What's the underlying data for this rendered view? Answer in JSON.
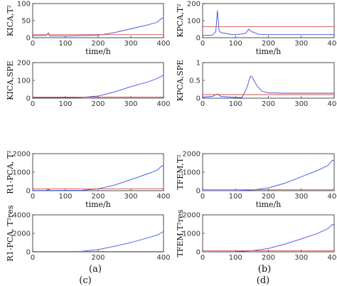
{
  "chart_data": [
    {
      "type": "line",
      "group": "a",
      "ylabel": "KICA,T²",
      "xlabel": "time/h",
      "xlim": [
        0,
        400
      ],
      "ylim": [
        0,
        100
      ],
      "xticks": [
        "0",
        "100",
        "200",
        "300",
        "400"
      ],
      "yticks": [
        "0",
        "50",
        "100"
      ],
      "series": [
        {
          "values": [
            [
              0,
              6
            ],
            [
              40,
              6
            ],
            [
              48,
              14
            ],
            [
              52,
              5
            ],
            [
              100,
              5
            ],
            [
              150,
              6
            ],
            [
              200,
              7
            ],
            [
              250,
              15
            ],
            [
              300,
              26
            ],
            [
              350,
              37
            ],
            [
              380,
              45
            ],
            [
              395,
              57
            ],
            [
              400,
              57
            ]
          ],
          "color": "#3b4fe0"
        },
        {
          "values": [
            [
              0,
              9
            ],
            [
              400,
              9
            ]
          ],
          "color": "#d9534f"
        }
      ]
    },
    {
      "type": "line",
      "group": "a",
      "ylabel": "KICA,SPE",
      "xlabel": "",
      "xlim": [
        0,
        400
      ],
      "ylim": [
        0,
        200
      ],
      "xticks": [
        "0",
        "100",
        "200",
        "300",
        "400"
      ],
      "yticks": [
        "0",
        "100",
        "200"
      ],
      "series": [
        {
          "values": [
            [
              0,
              2
            ],
            [
              100,
              3
            ],
            [
              150,
              5
            ],
            [
              200,
              12
            ],
            [
              250,
              35
            ],
            [
              300,
              65
            ],
            [
              350,
              90
            ],
            [
              380,
              110
            ],
            [
              400,
              130
            ]
          ],
          "color": "#3b4fe0"
        },
        {
          "values": [
            [
              0,
              6
            ],
            [
              400,
              6
            ]
          ],
          "color": "#d9534f"
        }
      ]
    },
    {
      "type": "line",
      "group": "b",
      "ylabel": "KPCA,T²",
      "xlabel": "time/h",
      "xlim": [
        0,
        400
      ],
      "ylim": [
        0,
        200
      ],
      "xticks": [
        "0",
        "100",
        "200",
        "300",
        "400"
      ],
      "yticks": [
        "0",
        "100",
        "200"
      ],
      "series": [
        {
          "values": [
            [
              0,
              15
            ],
            [
              30,
              15
            ],
            [
              40,
              35
            ],
            [
              45,
              160
            ],
            [
              50,
              45
            ],
            [
              55,
              30
            ],
            [
              70,
              25
            ],
            [
              90,
              18
            ],
            [
              110,
              20
            ],
            [
              130,
              25
            ],
            [
              140,
              50
            ],
            [
              150,
              35
            ],
            [
              170,
              20
            ],
            [
              200,
              18
            ],
            [
              300,
              18
            ],
            [
              400,
              18
            ]
          ],
          "color": "#3b4fe0"
        },
        {
          "values": [
            [
              0,
              65
            ],
            [
              400,
              65
            ]
          ],
          "color": "#d9534f"
        }
      ]
    },
    {
      "type": "line",
      "group": "b",
      "ylabel": "KPCA,SPE",
      "xlabel": "",
      "xlim": [
        0,
        400
      ],
      "ylim": [
        0,
        1
      ],
      "xticks": [
        "0",
        "100",
        "200",
        "300",
        "400"
      ],
      "yticks": [
        "0",
        "0.5",
        "1"
      ],
      "series": [
        {
          "values": [
            [
              0,
              0.03
            ],
            [
              30,
              0.05
            ],
            [
              45,
              0.12
            ],
            [
              55,
              0.05
            ],
            [
              100,
              0.02
            ],
            [
              120,
              0.02
            ],
            [
              135,
              0.3
            ],
            [
              145,
              0.62
            ],
            [
              150,
              0.6
            ],
            [
              165,
              0.35
            ],
            [
              180,
              0.2
            ],
            [
              200,
              0.15
            ],
            [
              240,
              0.14
            ],
            [
              400,
              0.14
            ]
          ],
          "color": "#3b4fe0"
        },
        {
          "values": [
            [
              0,
              0.1
            ],
            [
              400,
              0.1
            ]
          ],
          "color": "#d9534f"
        }
      ]
    },
    {
      "type": "line",
      "group": "c",
      "ylabel": "R1-PCA, T²",
      "xlabel": "time/h",
      "xlim": [
        0,
        400
      ],
      "ylim": [
        0,
        2000
      ],
      "xticks": [
        "0",
        "100",
        "200",
        "300",
        "400"
      ],
      "yticks": [
        "0",
        "1000",
        "2000"
      ],
      "series": [
        {
          "values": [
            [
              0,
              10
            ],
            [
              40,
              10
            ],
            [
              48,
              60
            ],
            [
              55,
              10
            ],
            [
              150,
              20
            ],
            [
              200,
              100
            ],
            [
              250,
              300
            ],
            [
              300,
              600
            ],
            [
              350,
              900
            ],
            [
              380,
              1100
            ],
            [
              395,
              1350
            ],
            [
              400,
              1300
            ]
          ],
          "color": "#3b4fe0"
        },
        {
          "values": [
            [
              0,
              100
            ],
            [
              400,
              100
            ]
          ],
          "color": "#d9534f"
        }
      ]
    },
    {
      "type": "line",
      "group": "c",
      "ylabel": "R1-PCA, T²res",
      "xlabel": "",
      "xlim": [
        0,
        400
      ],
      "ylim": [
        0,
        4000
      ],
      "xticks": [
        "0",
        "200",
        "400"
      ],
      "yticks": [
        "0",
        "2000",
        "4000"
      ],
      "series": [
        {
          "values": [
            [
              0,
              20
            ],
            [
              100,
              30
            ],
            [
              150,
              60
            ],
            [
              200,
              250
            ],
            [
              250,
              600
            ],
            [
              300,
              1000
            ],
            [
              350,
              1500
            ],
            [
              380,
              1800
            ],
            [
              400,
              2200
            ]
          ],
          "color": "#3b4fe0"
        },
        {
          "values": [
            [
              0,
              40
            ],
            [
              400,
              40
            ]
          ],
          "color": "#d9534f"
        }
      ]
    },
    {
      "type": "line",
      "group": "d",
      "ylabel": "TFEM,T²",
      "xlabel": "time/h",
      "xlim": [
        0,
        400
      ],
      "ylim": [
        0,
        2000
      ],
      "xticks": [
        "0",
        "100",
        "200",
        "300",
        "400"
      ],
      "yticks": [
        "0",
        "1000",
        "2000"
      ],
      "series": [
        {
          "values": [
            [
              0,
              5
            ],
            [
              100,
              5
            ],
            [
              150,
              30
            ],
            [
              200,
              150
            ],
            [
              250,
              400
            ],
            [
              300,
              750
            ],
            [
              350,
              1100
            ],
            [
              380,
              1350
            ],
            [
              395,
              1650
            ],
            [
              400,
              1600
            ]
          ],
          "color": "#3b4fe0"
        },
        {
          "values": [
            [
              0,
              50
            ],
            [
              400,
              50
            ]
          ],
          "color": "#d9534f"
        }
      ]
    },
    {
      "type": "line",
      "group": "d",
      "ylabel": "TFEM,T²res",
      "xlabel": "",
      "xlim": [
        0,
        400
      ],
      "ylim": [
        0,
        2000
      ],
      "xticks": [
        "0",
        "100",
        "200",
        "300",
        "400"
      ],
      "yticks": [
        "0",
        "1000",
        "2000"
      ],
      "series": [
        {
          "values": [
            [
              0,
              5
            ],
            [
              100,
              10
            ],
            [
              150,
              60
            ],
            [
              200,
              180
            ],
            [
              250,
              420
            ],
            [
              300,
              700
            ],
            [
              350,
              1000
            ],
            [
              380,
              1250
            ],
            [
              395,
              1480
            ],
            [
              400,
              1450
            ]
          ],
          "color": "#3b4fe0"
        },
        {
          "values": [
            [
              0,
              60
            ],
            [
              400,
              60
            ]
          ],
          "color": "#d9534f"
        }
      ]
    }
  ],
  "captions": {
    "a": "(a)",
    "b": "(b)",
    "c": "(c)",
    "d": "(d)"
  }
}
